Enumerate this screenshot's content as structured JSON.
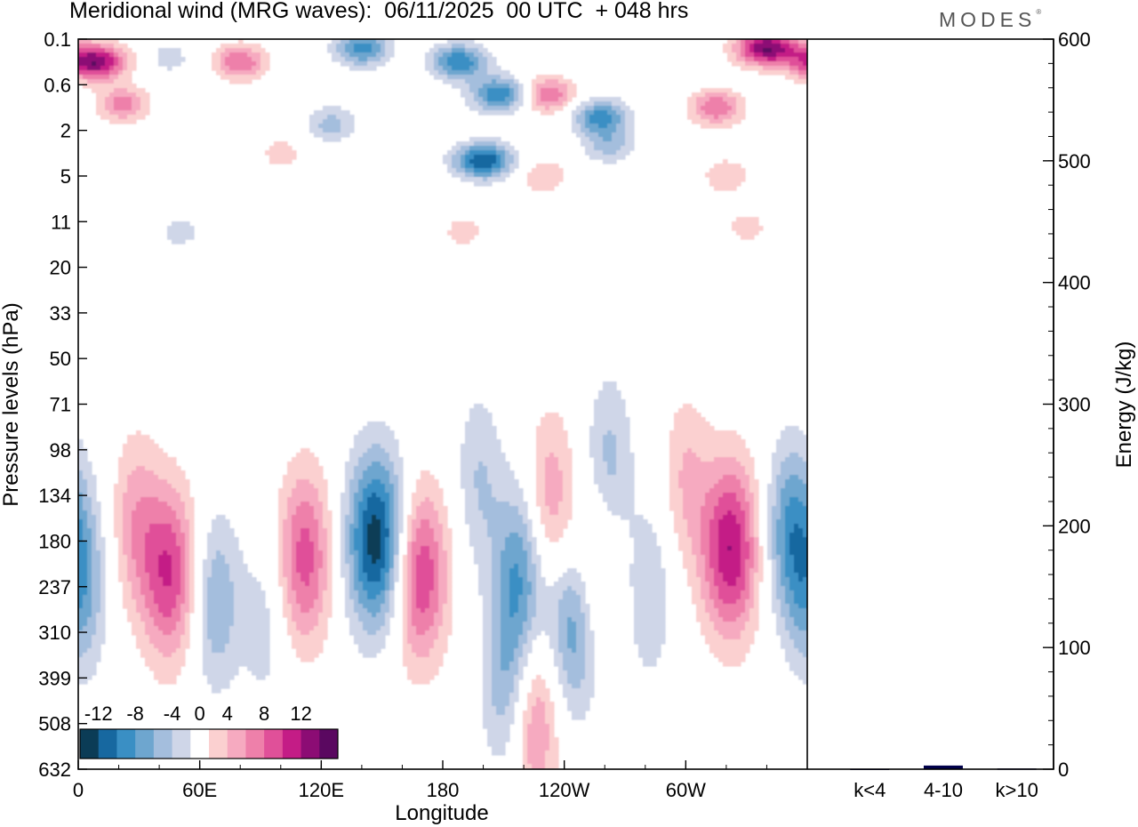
{
  "header": {
    "title": "Meridional wind (MRG waves):  06/11/2025  00 UTC  + 048 hrs",
    "brand": "MODES",
    "brand_mark": "®"
  },
  "chart_data": [
    {
      "type": "heatmap",
      "title": "Meridional wind (MRG waves)",
      "xlabel": "Longitude",
      "ylabel": "Pressure levels (hPa)",
      "x_ticks": [
        "0",
        "60E",
        "120E",
        "180",
        "120W",
        "60W"
      ],
      "x_tick_lon": [
        0,
        60,
        120,
        180,
        240,
        300
      ],
      "x_range": [
        0,
        360
      ],
      "y_ticks": [
        "0.1",
        "0.6",
        "2",
        "5",
        "11",
        "20",
        "33",
        "50",
        "71",
        "98",
        "134",
        "180",
        "237",
        "310",
        "399",
        "508",
        "632"
      ],
      "color_scale": {
        "labels": [
          "-12",
          "-8",
          "-4",
          "0",
          "4",
          "8",
          "12"
        ],
        "bins": [
          -14,
          -12,
          -10,
          -8,
          -6,
          -4,
          -2,
          2,
          4,
          6,
          8,
          10,
          12,
          14
        ],
        "colors": [
          "#0b3c56",
          "#1768a0",
          "#3a8fc4",
          "#6ea6cf",
          "#a4bedd",
          "#cfd6e8",
          "#ffffff",
          "#fbd0d0",
          "#f6aac0",
          "#ee80aa",
          "#e05099",
          "#c41c86",
          "#8c0c74",
          "#5a0860"
        ]
      },
      "features": [
        {
          "lon": 8,
          "p": 0.35,
          "v": 14
        },
        {
          "lon": 22,
          "p": 1.2,
          "v": 7
        },
        {
          "lon": 45,
          "p": 0.3,
          "v": -3
        },
        {
          "lon": 80,
          "p": 0.35,
          "v": 8
        },
        {
          "lon": 140,
          "p": 0.2,
          "v": -9
        },
        {
          "lon": 188,
          "p": 0.35,
          "v": -10
        },
        {
          "lon": 208,
          "p": 0.9,
          "v": -10
        },
        {
          "lon": 232,
          "p": 0.9,
          "v": 8
        },
        {
          "lon": 200,
          "p": 4,
          "v": -12
        },
        {
          "lon": 258,
          "p": 1.6,
          "v": -9
        },
        {
          "lon": 262,
          "p": 3.0,
          "v": -5
        },
        {
          "lon": 230,
          "p": 5,
          "v": 4
        },
        {
          "lon": 340,
          "p": 0.2,
          "v": 14
        },
        {
          "lon": 315,
          "p": 1.3,
          "v": 8
        },
        {
          "lon": 320,
          "p": 5,
          "v": 4
        },
        {
          "lon": 125,
          "p": 1.8,
          "v": -5
        },
        {
          "lon": 100,
          "p": 3.5,
          "v": 3
        },
        {
          "lon": 50,
          "p": 13,
          "v": -3
        },
        {
          "lon": 190,
          "p": 13,
          "v": 3
        },
        {
          "lon": 330,
          "p": 12,
          "v": 3
        },
        {
          "lon": 2,
          "p": 240,
          "v": -6
        },
        {
          "lon": 28,
          "p": 160,
          "v": 5
        },
        {
          "lon": 45,
          "p": 220,
          "v": 10
        },
        {
          "lon": 68,
          "p": 260,
          "v": -6
        },
        {
          "lon": 92,
          "p": 300,
          "v": -3
        },
        {
          "lon": 112,
          "p": 200,
          "v": 9
        },
        {
          "lon": 148,
          "p": 180,
          "v": -14
        },
        {
          "lon": 168,
          "p": 220,
          "v": 11
        },
        {
          "lon": 198,
          "p": 120,
          "v": -4
        },
        {
          "lon": 212,
          "p": 420,
          "v": -6
        },
        {
          "lon": 218,
          "p": 220,
          "v": -8
        },
        {
          "lon": 233,
          "p": 140,
          "v": 6
        },
        {
          "lon": 245,
          "p": 300,
          "v": -8
        },
        {
          "lon": 256,
          "p": 220,
          "v": 5
        },
        {
          "lon": 262,
          "p": 110,
          "v": -5
        },
        {
          "lon": 282,
          "p": 250,
          "v": -4
        },
        {
          "lon": 300,
          "p": 120,
          "v": 4
        },
        {
          "lon": 322,
          "p": 190,
          "v": 12
        },
        {
          "lon": 352,
          "p": 170,
          "v": -8
        },
        {
          "lon": 225,
          "p": 500,
          "v": 7
        }
      ]
    },
    {
      "type": "bar",
      "ylabel": "Energy (J/kg)",
      "categories": [
        "k<4",
        "4-10",
        "k>10"
      ],
      "values": [
        0.4,
        3.0,
        0.6
      ],
      "ylim": [
        0,
        600
      ],
      "y_ticks": [
        "0",
        "100",
        "200",
        "300",
        "400",
        "500",
        "600"
      ],
      "y_tick_values": [
        0,
        100,
        200,
        300,
        400,
        500,
        600
      ],
      "bar_color": "#00004b"
    }
  ]
}
